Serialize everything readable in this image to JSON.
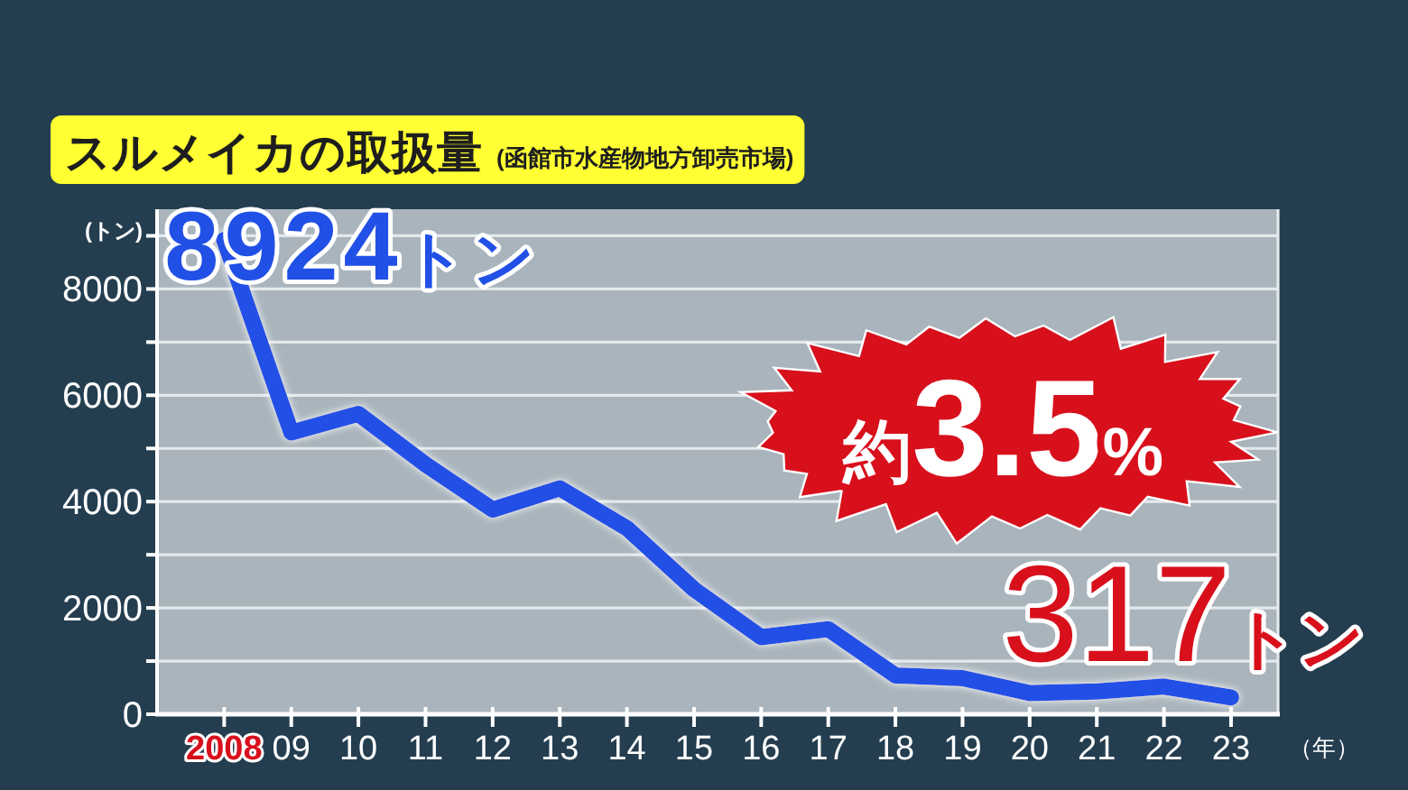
{
  "chart_data": {
    "type": "line",
    "title": "スルメイカの取扱量",
    "subtitle": "(函館市水産物地方卸売市場)",
    "xlabel": "（年）",
    "ylabel": "(トン)",
    "categories": [
      "2008",
      "09",
      "10",
      "11",
      "12",
      "13",
      "14",
      "15",
      "16",
      "17",
      "18",
      "19",
      "20",
      "21",
      "22",
      "23"
    ],
    "series": [
      {
        "color": "#2150e6",
        "values": [
          8924,
          5300,
          5650,
          4700,
          3850,
          4250,
          3500,
          2350,
          1450,
          1600,
          730,
          680,
          400,
          430,
          520,
          317
        ]
      }
    ],
    "ylim": [
      0,
      9500
    ],
    "yticks": [
      0,
      {
        "value": 1000,
        "label": null
      },
      2000,
      {
        "value": 3000,
        "label": null
      },
      4000,
      {
        "value": 5000,
        "label": null
      },
      6000,
      {
        "value": 7000,
        "label": null
      },
      8000,
      {
        "value": 9000,
        "label": null
      }
    ],
    "grid": "y",
    "line_style": "solid",
    "annotations": [
      {
        "text": "8924トン",
        "x": "2008",
        "y": 8924
      },
      "約3.5%",
      {
        "text": "317トン",
        "x": "23",
        "y": 317
      }
    ]
  }
}
